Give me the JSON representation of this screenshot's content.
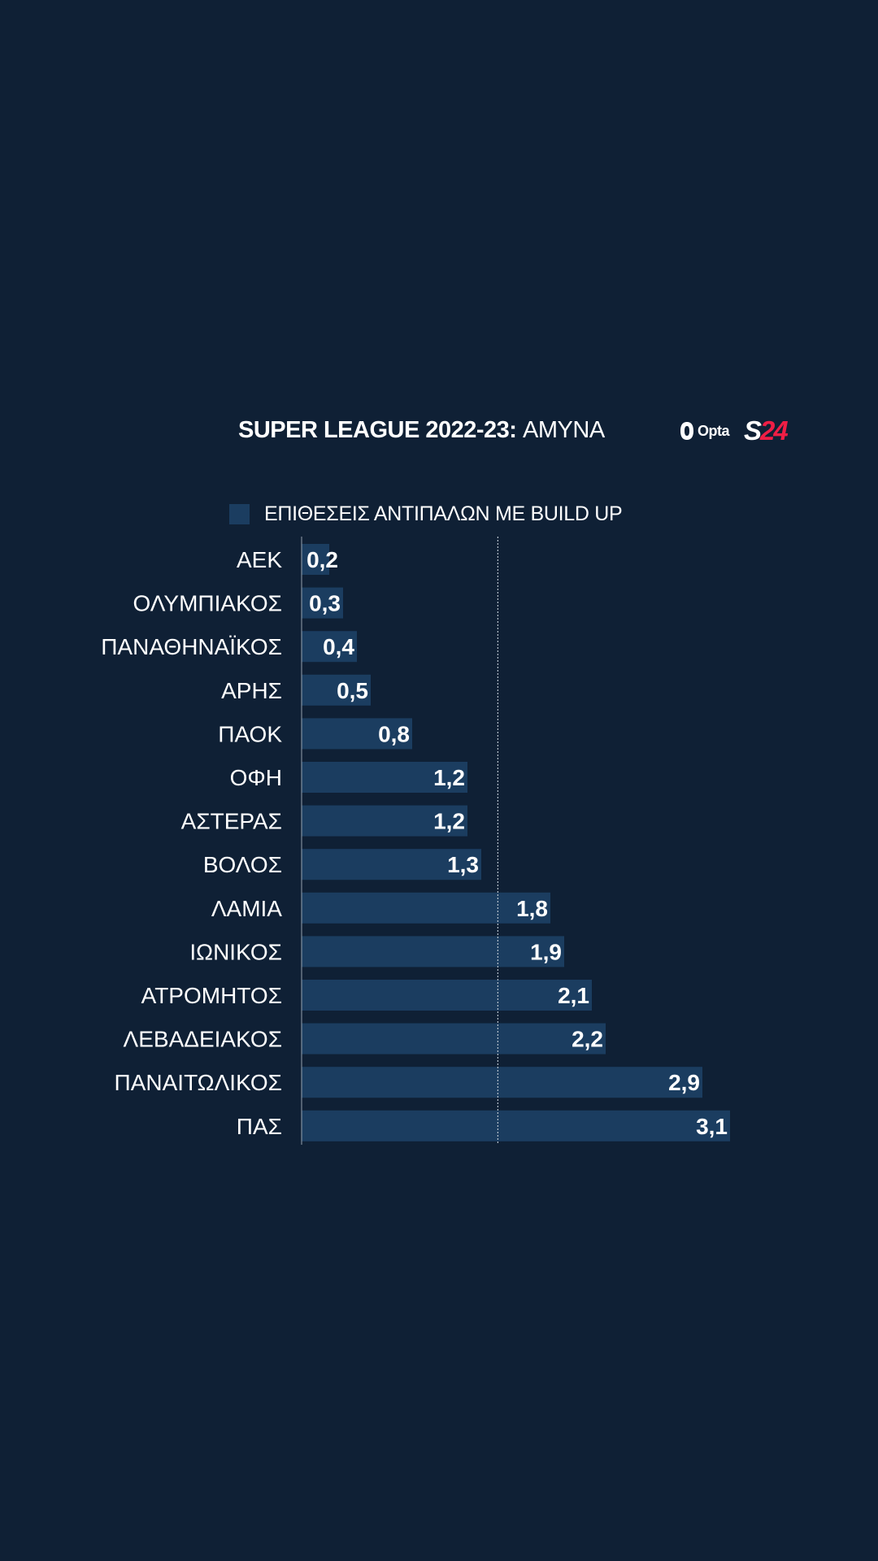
{
  "header": {
    "title_bold": "SUPER LEAGUE 2022-23:",
    "title_light": "ΑΜΥΝΑ",
    "logo_opta": "Opta",
    "logo_s": "S",
    "logo_num": "24"
  },
  "colors": {
    "background": "#0f2035",
    "bar": "#1b3d60",
    "text": "#ffffff",
    "brand_accent": "#ef1e45",
    "gridline": "#b8c2cc"
  },
  "chart_data": {
    "type": "bar",
    "orientation": "horizontal",
    "categories": [
      "ΑΕΚ",
      "ΟΛΥΜΠΙΑΚΟΣ",
      "ΠΑΝΑΘΗΝΑΪΚΟΣ",
      "ΑΡΗΣ",
      "ΠΑΟΚ",
      "ΟΦΗ",
      "ΑΣΤΕΡΑΣ",
      "ΒΟΛΟΣ",
      "ΛΑΜΙΑ",
      "ΙΩΝΙΚΟΣ",
      "ΑΤΡΟΜΗΤΟΣ",
      "ΛΕΒΑΔΕΙΑΚΟΣ",
      "ΠΑΝΑΙΤΩΛΙΚΟΣ",
      "ΠΑΣ"
    ],
    "series": [
      {
        "name": "ΕΠΙΘΕΣΕΙΣ ΑΝΤΙΠΑΛΩΝ ΜΕ BUILD UP",
        "values": [
          0.2,
          0.3,
          0.4,
          0.5,
          0.8,
          1.2,
          1.2,
          1.3,
          1.8,
          1.9,
          2.1,
          2.2,
          2.9,
          3.1
        ],
        "labels": [
          "0,2",
          "0,3",
          "0,4",
          "0,5",
          "0,8",
          "1,2",
          "1,2",
          "1,3",
          "1,8",
          "1,9",
          "2,1",
          "2,2",
          "2,9",
          "3,1"
        ]
      }
    ],
    "title": "SUPER LEAGUE 2022-23: ΑΜΥΝΑ",
    "xlabel": "",
    "ylabel": "",
    "xlim": [
      0,
      3.1
    ],
    "reference_line": 1.42,
    "legend_position": "top",
    "grid": false
  }
}
